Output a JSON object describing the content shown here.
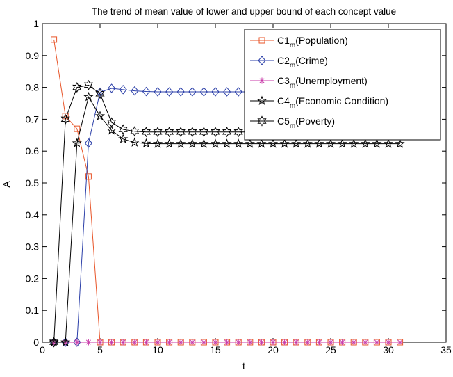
{
  "chart_data": {
    "type": "line",
    "title": "The trend of mean value of lower and upper bound of each concept value",
    "xlabel": "t",
    "ylabel": "A",
    "xlim": [
      0,
      35
    ],
    "ylim": [
      0,
      1
    ],
    "xticks": [
      0,
      5,
      10,
      15,
      20,
      25,
      30,
      35
    ],
    "yticks": [
      0,
      0.1,
      0.2,
      0.3,
      0.4,
      0.5,
      0.6,
      0.7,
      0.8,
      0.9,
      1
    ],
    "grid": false,
    "legend_position": "top-right",
    "series": [
      {
        "label_main": "C1",
        "label_sub": "m",
        "label_rest": "(Population)",
        "color": "#e8562a",
        "marker": "square",
        "x": [
          1,
          2,
          3,
          4,
          5,
          6,
          7,
          8,
          9,
          10,
          11,
          12,
          13,
          14,
          15,
          16,
          17,
          18,
          19,
          20,
          21,
          22,
          23,
          24,
          25,
          26,
          27,
          28,
          29,
          30,
          31
        ],
        "y": [
          0.95,
          0.71,
          0.67,
          0.52,
          0,
          0,
          0,
          0,
          0,
          0,
          0,
          0,
          0,
          0,
          0,
          0,
          0,
          0,
          0,
          0,
          0,
          0,
          0,
          0,
          0,
          0,
          0,
          0,
          0,
          0,
          0
        ]
      },
      {
        "label_main": "C2",
        "label_sub": "m",
        "label_rest": "(Crime)",
        "color": "#2b3fa8",
        "marker": "diamond",
        "x": [
          1,
          2,
          3,
          4,
          5,
          6,
          7,
          8,
          9,
          10,
          11,
          12,
          13,
          14,
          15,
          16,
          17,
          18,
          19,
          20,
          21,
          22,
          23,
          24,
          25,
          26,
          27,
          28,
          29,
          30,
          31
        ],
        "y": [
          0,
          0,
          0,
          0.625,
          0.785,
          0.797,
          0.793,
          0.789,
          0.787,
          0.786,
          0.786,
          0.786,
          0.786,
          0.786,
          0.786,
          0.786,
          0.786,
          0.786,
          0.786,
          0.786,
          0.786,
          0.786,
          0.786,
          0.786,
          0.786,
          0.786,
          0.786,
          0.786,
          0.786,
          0.786,
          0.786
        ]
      },
      {
        "label_main": "C3",
        "label_sub": "m",
        "label_rest": "(Unemployment)",
        "color": "#c83aa8",
        "marker": "asterisk",
        "x": [
          1,
          2,
          3,
          4,
          5,
          6,
          7,
          8,
          9,
          10,
          11,
          12,
          13,
          14,
          15,
          16,
          17,
          18,
          19,
          20,
          21,
          22,
          23,
          24,
          25,
          26,
          27,
          28,
          29,
          30,
          31
        ],
        "y": [
          0,
          0,
          0,
          0,
          0,
          0,
          0,
          0,
          0,
          0,
          0,
          0,
          0,
          0,
          0,
          0,
          0,
          0,
          0,
          0,
          0,
          0,
          0,
          0,
          0,
          0,
          0,
          0,
          0,
          0,
          0
        ]
      },
      {
        "label_main": "C4",
        "label_sub": "m",
        "label_rest": "(Economic Condition)",
        "color": "#000000",
        "marker": "star",
        "x": [
          1,
          2,
          3,
          4,
          5,
          6,
          7,
          8,
          9,
          10,
          11,
          12,
          13,
          14,
          15,
          16,
          17,
          18,
          19,
          20,
          21,
          22,
          23,
          24,
          25,
          26,
          27,
          28,
          29,
          30,
          31
        ],
        "y": [
          0,
          0,
          0.625,
          0.77,
          0.71,
          0.665,
          0.638,
          0.627,
          0.624,
          0.623,
          0.623,
          0.623,
          0.623,
          0.623,
          0.623,
          0.623,
          0.623,
          0.623,
          0.623,
          0.623,
          0.623,
          0.623,
          0.623,
          0.623,
          0.623,
          0.623,
          0.623,
          0.623,
          0.623,
          0.623,
          0.623
        ]
      },
      {
        "label_main": "C5",
        "label_sub": "m",
        "label_rest": "(Poverty)",
        "color": "#000000",
        "marker": "hexagram",
        "x": [
          1,
          2,
          3,
          4,
          5,
          6,
          7,
          8,
          9,
          10,
          11,
          12,
          13,
          14,
          15,
          16,
          17,
          18,
          19,
          20,
          21,
          22,
          23,
          24,
          25,
          26,
          27,
          28,
          29,
          30,
          31
        ],
        "y": [
          0,
          0.7,
          0.8,
          0.807,
          0.78,
          0.69,
          0.668,
          0.662,
          0.66,
          0.66,
          0.66,
          0.66,
          0.66,
          0.66,
          0.66,
          0.66,
          0.66,
          0.66,
          0.66,
          0.66,
          0.66,
          0.66,
          0.66,
          0.66,
          0.66,
          0.66,
          0.66,
          0.66,
          0.66,
          0.66,
          0.66
        ]
      }
    ]
  }
}
